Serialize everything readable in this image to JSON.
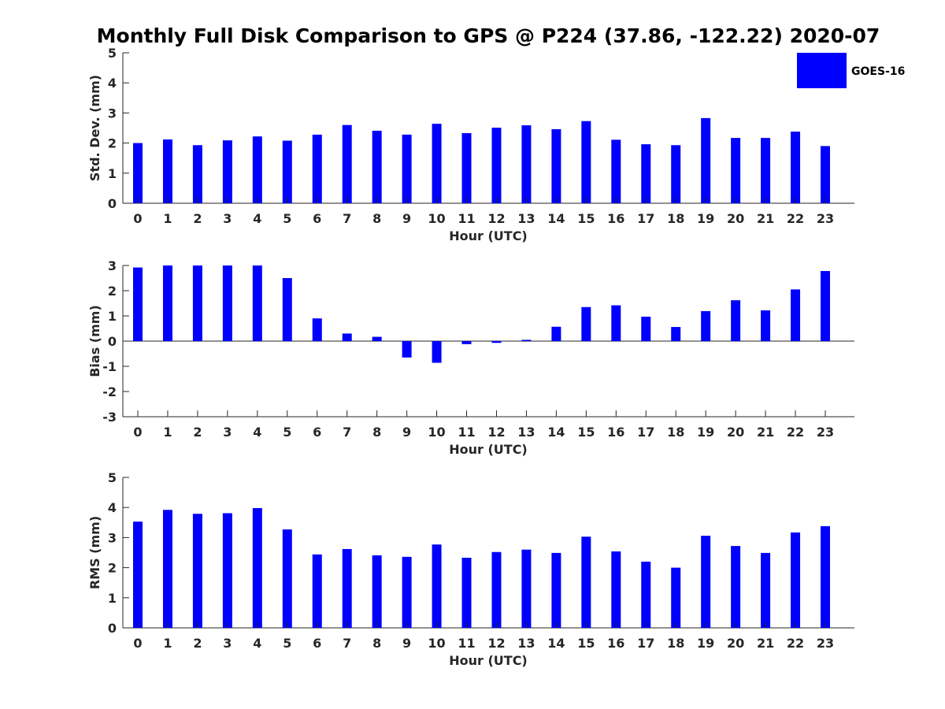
{
  "title": "Monthly Full Disk Comparison to GPS @ P224 (37.86, -122.22) 2020-07",
  "legend": {
    "label": "GOES-16",
    "color": "#0000ff",
    "position": "top-right"
  },
  "chart_data": [
    {
      "id": "std",
      "type": "bar",
      "categories": [
        "0",
        "1",
        "2",
        "3",
        "4",
        "5",
        "6",
        "7",
        "8",
        "9",
        "10",
        "11",
        "12",
        "13",
        "14",
        "15",
        "16",
        "17",
        "18",
        "19",
        "20",
        "21",
        "22",
        "23"
      ],
      "series": [
        {
          "name": "GOES-16",
          "color": "#0000ff",
          "values": [
            2.0,
            2.12,
            1.93,
            2.09,
            2.22,
            2.08,
            2.28,
            2.6,
            2.41,
            2.28,
            2.64,
            2.33,
            2.51,
            2.59,
            2.46,
            2.73,
            2.11,
            1.96,
            1.93,
            2.83,
            2.17,
            2.17,
            2.38,
            1.9
          ]
        }
      ],
      "xlabel": "Hour (UTC)",
      "ylabel": "Std. Dev. (mm)",
      "ylim": [
        0,
        5
      ],
      "yticks": [
        "0",
        "1",
        "2",
        "3",
        "4",
        "5"
      ],
      "grid": false
    },
    {
      "id": "bias",
      "type": "bar",
      "categories": [
        "0",
        "1",
        "2",
        "3",
        "4",
        "5",
        "6",
        "7",
        "8",
        "9",
        "10",
        "11",
        "12",
        "13",
        "14",
        "15",
        "16",
        "17",
        "18",
        "19",
        "20",
        "21",
        "22",
        "23"
      ],
      "series": [
        {
          "name": "GOES-16",
          "color": "#0000ff",
          "values": [
            2.92,
            3.0,
            3.0,
            3.0,
            3.0,
            2.5,
            0.9,
            0.3,
            0.17,
            -0.65,
            -0.86,
            -0.12,
            -0.07,
            0.05,
            0.57,
            1.35,
            1.42,
            0.97,
            0.56,
            1.19,
            1.62,
            1.22,
            2.05,
            2.78
          ]
        }
      ],
      "xlabel": "Hour (UTC)",
      "ylabel": "Bias (mm)",
      "ylim": [
        -3,
        3
      ],
      "yticks": [
        "-3",
        "-2",
        "-1",
        "0",
        "1",
        "2",
        "3"
      ],
      "grid": false
    },
    {
      "id": "rms",
      "type": "bar",
      "categories": [
        "0",
        "1",
        "2",
        "3",
        "4",
        "5",
        "6",
        "7",
        "8",
        "9",
        "10",
        "11",
        "12",
        "13",
        "14",
        "15",
        "16",
        "17",
        "18",
        "19",
        "20",
        "21",
        "22",
        "23"
      ],
      "series": [
        {
          "name": "GOES-16",
          "color": "#0000ff",
          "values": [
            3.53,
            3.92,
            3.79,
            3.81,
            3.98,
            3.27,
            2.44,
            2.62,
            2.41,
            2.36,
            2.77,
            2.33,
            2.52,
            2.6,
            2.49,
            3.03,
            2.54,
            2.2,
            2.0,
            3.06,
            2.72,
            2.49,
            3.17,
            3.38
          ]
        }
      ],
      "xlabel": "Hour (UTC)",
      "ylabel": "RMS (mm)",
      "ylim": [
        0,
        5
      ],
      "yticks": [
        "0",
        "1",
        "2",
        "3",
        "4",
        "5"
      ],
      "grid": false
    }
  ]
}
